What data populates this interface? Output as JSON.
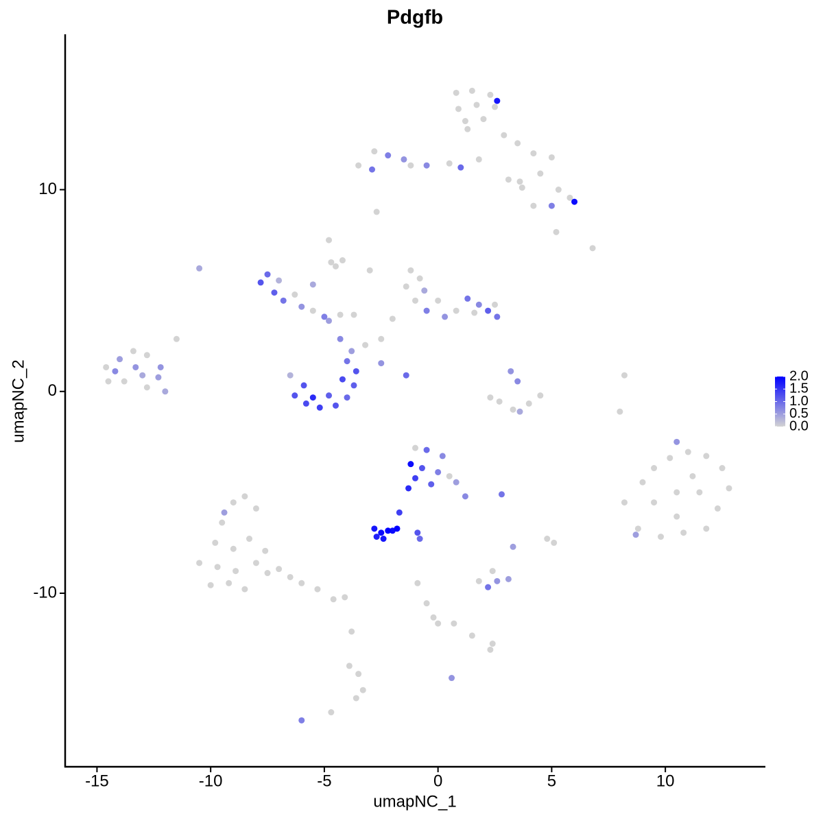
{
  "chart_data": {
    "type": "scatter",
    "title": "Pdgfb",
    "xlabel": "umapNC_1",
    "ylabel": "umapNC_2",
    "xlim": [
      -16.4,
      14.4
    ],
    "ylim": [
      -18.6,
      17.7
    ],
    "xticks": [
      -15,
      -10,
      -5,
      0,
      5,
      10
    ],
    "yticks": [
      -10,
      0,
      10
    ],
    "grid": false,
    "x": [
      0.8,
      1.5,
      2.3,
      0.9,
      1.7,
      2.5,
      1.2,
      2.0,
      2.6,
      1.3,
      2.9,
      3.5,
      4.2,
      5.0,
      4.5,
      5.3,
      5.8,
      6.0,
      4.2,
      5.0,
      3.6,
      -2.8,
      -2.2,
      -1.5,
      -2.9,
      -1.2,
      -0.5,
      0.5,
      1.0,
      -3.5,
      1.8,
      3.1,
      3.7,
      -7.5,
      -7.8,
      -7.2,
      -6.8,
      -7.0,
      -6.3,
      -6.0,
      -5.5,
      -5.0,
      -4.8,
      -4.3,
      -5.5,
      -4.7,
      -3.7,
      -4.5,
      -6.5,
      -6.3,
      -5.8,
      -5.2,
      -4.5,
      -4.0,
      -3.7,
      -3.6,
      -4.0,
      -5.5,
      -4.8,
      -4.2,
      -5.9,
      -3.8,
      -4.3,
      -1.2,
      -0.8,
      -1.4,
      -0.6,
      0.0,
      -0.5,
      0.3,
      0.8,
      1.3,
      1.8,
      2.2,
      2.6,
      2.5,
      1.6,
      -2.0,
      -2.5,
      -1.0,
      -3.0,
      3.2,
      3.5,
      2.7,
      3.3,
      4.0,
      4.5,
      3.6,
      2.3,
      -1.0,
      -0.5,
      0.2,
      -1.2,
      -0.7,
      0.0,
      0.5,
      -1.0,
      -0.3,
      0.8,
      1.2,
      -1.3,
      -2.8,
      -2.5,
      -2.2,
      -2.7,
      -2.0,
      -1.8,
      -2.4,
      -1.7,
      -0.9,
      -0.8,
      2.8,
      3.3,
      5.1,
      4.8,
      2.6,
      2.2,
      1.8,
      3.1,
      2.4,
      -0.9,
      -0.5,
      -0.2,
      0.0,
      0.7,
      1.5,
      2.4,
      2.3,
      0.6,
      -3.5,
      -3.3,
      -3.6,
      -3.9,
      -4.7,
      -6.0,
      -3.8,
      -14.6,
      -14.0,
      -13.4,
      -12.8,
      -12.2,
      -13.0,
      -13.8,
      -14.5,
      -12.8,
      -12.0,
      -12.3,
      -11.5,
      -14.2,
      -13.3,
      -10.5,
      -9.5,
      -9.0,
      -8.5,
      -8.0,
      -9.8,
      -9.0,
      -8.3,
      -7.6,
      -10.5,
      -9.7,
      -8.9,
      -8.0,
      -7.5,
      -9.2,
      -8.5,
      -10.0,
      -7.0,
      -6.5,
      -6.0,
      -5.3,
      -4.6,
      -4.1,
      -9.4,
      9.0,
      9.5,
      10.2,
      11.0,
      11.8,
      12.5,
      12.8,
      12.3,
      11.8,
      10.8,
      9.8,
      8.8,
      8.2,
      9.5,
      10.5,
      11.5,
      10.5,
      11.2,
      10.5,
      8.7,
      8.0,
      8.2,
      6.8,
      5.2,
      -2.7,
      -4.8,
      -4.2,
      -1.4,
      -2.5,
      -3.2
    ],
    "values": [
      14.8,
      14.9,
      14.7,
      14.0,
      14.2,
      14.1,
      13.4,
      13.5,
      14.4,
      13.0,
      12.7,
      12.3,
      11.8,
      11.6,
      10.8,
      10.0,
      9.6,
      9.4,
      9.2,
      9.2,
      10.4,
      11.9,
      11.7,
      11.5,
      11.0,
      11.2,
      11.2,
      11.3,
      11.1,
      11.2,
      11.5,
      10.5,
      10.1,
      5.8,
      5.4,
      4.9,
      4.5,
      5.5,
      4.8,
      4.2,
      4.0,
      3.7,
      3.5,
      3.8,
      5.3,
      6.4,
      3.8,
      6.2,
      0.8,
      -0.2,
      -0.6,
      -0.8,
      -0.7,
      -0.3,
      0.3,
      1.0,
      1.5,
      -0.3,
      -0.2,
      0.6,
      0.3,
      2.0,
      2.6,
      6.0,
      5.6,
      5.2,
      5.0,
      4.5,
      4.0,
      3.7,
      4.0,
      4.6,
      4.3,
      4.0,
      3.7,
      4.3,
      3.9,
      3.6,
      2.6,
      4.5,
      6.0,
      1.0,
      0.5,
      -0.5,
      -0.9,
      -0.6,
      -0.2,
      -1.0,
      -0.3,
      -2.8,
      -2.9,
      -3.2,
      -3.6,
      -3.8,
      -4.0,
      -4.2,
      -4.3,
      -4.6,
      -4.5,
      -5.2,
      -4.8,
      -6.8,
      -7.0,
      -6.9,
      -7.2,
      -6.9,
      -6.8,
      -7.3,
      -6.0,
      -7.0,
      -7.3,
      -5.1,
      -7.7,
      -7.5,
      -7.3,
      -9.4,
      -9.7,
      -9.4,
      -9.3,
      -8.9,
      -9.5,
      -10.5,
      -11.2,
      -11.5,
      -11.5,
      -12.1,
      -12.5,
      -12.8,
      -14.2,
      -14.0,
      -14.8,
      -15.2,
      -13.6,
      -15.9,
      -16.3,
      -11.9,
      1.2,
      1.6,
      2.0,
      1.8,
      1.2,
      0.8,
      0.5,
      0.5,
      0.2,
      0.0,
      0.7,
      2.6,
      1.0,
      1.2,
      6.1,
      -6.5,
      -5.5,
      -5.2,
      -5.8,
      -7.5,
      -7.8,
      -7.3,
      -7.9,
      -8.5,
      -8.7,
      -8.9,
      -8.5,
      -9.0,
      -9.5,
      -9.8,
      -9.6,
      -8.8,
      -9.2,
      -9.5,
      -9.8,
      -10.3,
      -10.2,
      -6.0,
      -4.5,
      -3.8,
      -3.3,
      -3.0,
      -3.2,
      -3.8,
      -4.8,
      -5.8,
      -6.8,
      -7.0,
      -7.2,
      -6.8,
      -5.5,
      -5.5,
      -5.0,
      -5.0,
      -6.2,
      -4.2,
      -2.5,
      -7.1,
      -1.0,
      0.8,
      7.1,
      7.9,
      8.9,
      7.5,
      6.5,
      0.8,
      1.4,
      2.3
    ],
    "expression": [
      0,
      0,
      0,
      0,
      0,
      0,
      0,
      0,
      1.8,
      0,
      0,
      0,
      0,
      0,
      0,
      0,
      0,
      1.9,
      0,
      0.8,
      0,
      0,
      0.8,
      0.6,
      0.9,
      0,
      0.7,
      0,
      1.0,
      0,
      0,
      0,
      0,
      1.0,
      1.2,
      1.1,
      0.9,
      0.3,
      0,
      0.6,
      0,
      0.8,
      0.5,
      0,
      0.4,
      0,
      0,
      0,
      0.3,
      1.2,
      1.3,
      1.4,
      1.2,
      1.0,
      1.1,
      1.2,
      0.9,
      1.6,
      1.1,
      1.3,
      1.2,
      0.5,
      0.7,
      0,
      0,
      0,
      0.4,
      0,
      0.8,
      0.6,
      0,
      0.9,
      0.7,
      1.1,
      0.9,
      0,
      0,
      0,
      0,
      0,
      0,
      0.6,
      0.7,
      0,
      0,
      0,
      0,
      0.4,
      0,
      0,
      1.0,
      0.7,
      1.9,
      1.2,
      0.8,
      0,
      1.4,
      1.1,
      0.5,
      0.7,
      1.6,
      1.8,
      1.9,
      2.0,
      1.7,
      1.9,
      2.0,
      1.8,
      1.4,
      1.2,
      1.0,
      0.9,
      0.5,
      0,
      0,
      0.6,
      0.9,
      0,
      0.5,
      0,
      0,
      0,
      0,
      0,
      0,
      0,
      0,
      0,
      0.6,
      0,
      0,
      0,
      0,
      0,
      0.8,
      0,
      0,
      0.5,
      0,
      0,
      0.6,
      0.4,
      0,
      0,
      0,
      0.4,
      0.5,
      0,
      0.7,
      0.6,
      0.4,
      0,
      0,
      0,
      0,
      0,
      0,
      0,
      0,
      0,
      0,
      0,
      0,
      0,
      0,
      0,
      0,
      0,
      0,
      0,
      0,
      0,
      0,
      0.5,
      0,
      0,
      0,
      0,
      0,
      0,
      0,
      0,
      0,
      0,
      0,
      0,
      0,
      0,
      0,
      0,
      0,
      0,
      0.6,
      0.5,
      0,
      0,
      0,
      0,
      0,
      0,
      0,
      1.0,
      0.6,
      0
    ],
    "colorbar": {
      "low_color": "#d3d3d3",
      "high_color": "#0000ff",
      "lim": [
        0,
        2
      ],
      "ticks": [
        {
          "value": 0,
          "label": "0.0"
        },
        0.5,
        {
          "value": 1,
          "label": "1.0"
        },
        1.5,
        {
          "value": 2,
          "label": "2.0"
        }
      ]
    }
  }
}
